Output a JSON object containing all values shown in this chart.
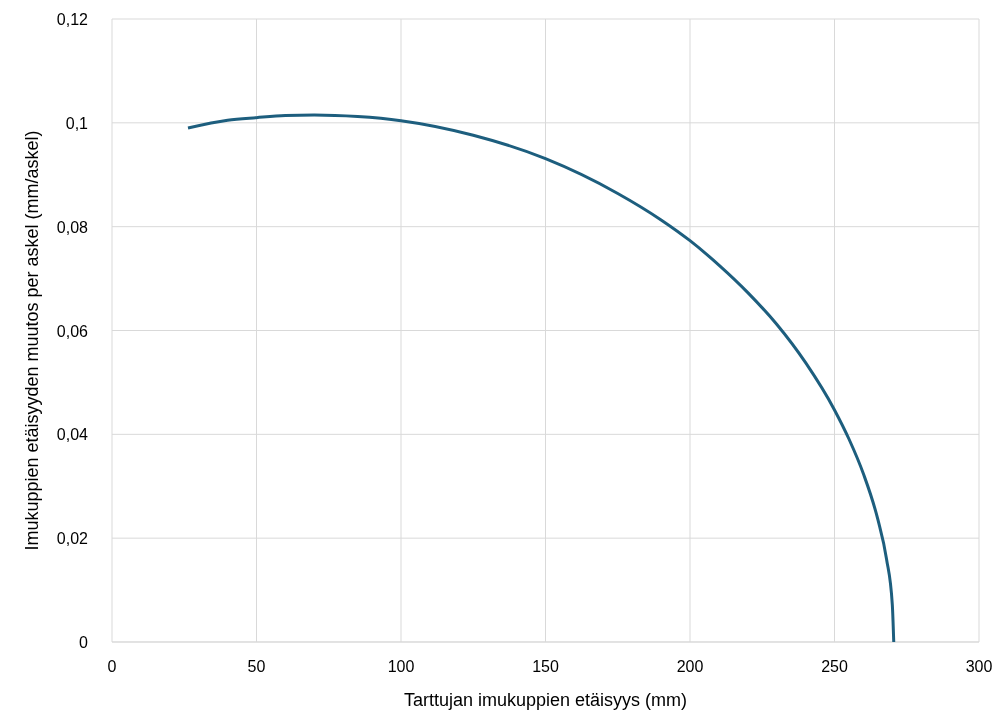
{
  "chart_data": {
    "type": "line",
    "xlabel": "Tarttujan imukuppien etäisyys (mm)",
    "ylabel": "Imukuppien etäisyyden muutos per askel (mm/askel)",
    "x": [
      26.3,
      40,
      50,
      60,
      70,
      85,
      100,
      125,
      150,
      175,
      190,
      200,
      210,
      220,
      230,
      240,
      250,
      255,
      260,
      265,
      268,
      270,
      270.5
    ],
    "series": [
      {
        "color": "#1d5e7e",
        "values": [
          0.099,
          0.1005,
          0.101,
          0.1014,
          0.1015,
          0.1012,
          0.1004,
          0.0976,
          0.0931,
          0.0864,
          0.0813,
          0.0773,
          0.0726,
          0.0673,
          0.0612,
          0.0538,
          0.0447,
          0.0391,
          0.0324,
          0.0236,
          0.016,
          0.0072,
          0
        ]
      }
    ],
    "xlim": [
      0,
      300
    ],
    "xticks": [
      0,
      50,
      100,
      150,
      200,
      250,
      300
    ],
    "ylim": [
      0,
      0.12
    ],
    "yticks": [
      {
        "value": 0,
        "label": "0"
      },
      {
        "value": 0.02,
        "label": "0,02"
      },
      {
        "value": 0.04,
        "label": "0,04"
      },
      {
        "value": 0.06,
        "label": "0,06"
      },
      {
        "value": 0.08,
        "label": "0,08"
      },
      {
        "value": 0.1,
        "label": "0,1"
      },
      {
        "value": 0.12,
        "label": "0,12"
      }
    ],
    "grid": true,
    "marker": "none",
    "line_style": "solid"
  }
}
